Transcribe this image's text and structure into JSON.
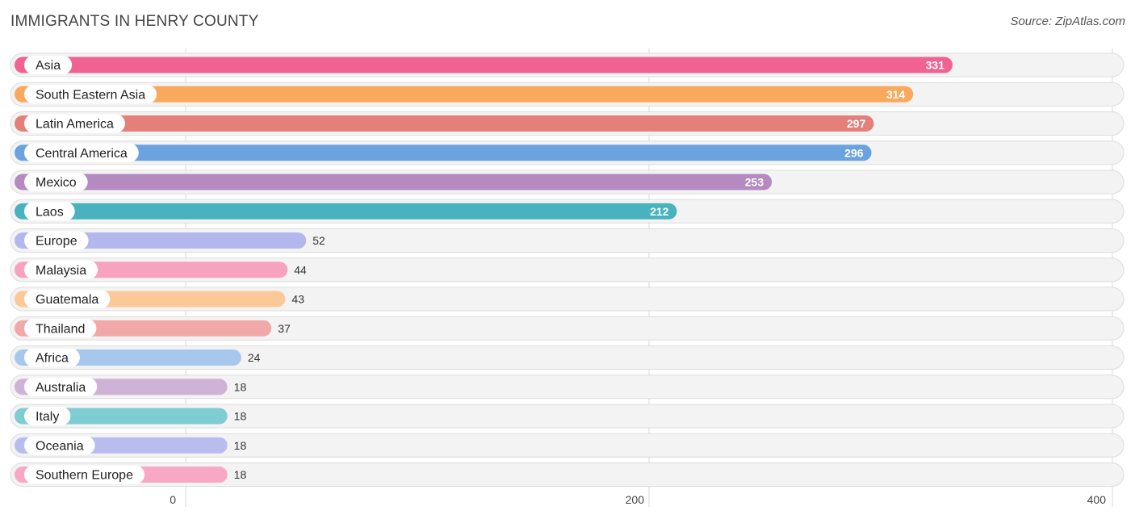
{
  "chart_data": {
    "type": "bar",
    "orientation": "horizontal",
    "title": "IMMIGRANTS IN HENRY COUNTY",
    "source": "Source: ZipAtlas.com",
    "xlim": [
      0,
      400
    ],
    "xticks": [
      0,
      200,
      400
    ],
    "categories": [
      "Asia",
      "South Eastern Asia",
      "Latin America",
      "Central America",
      "Mexico",
      "Laos",
      "Europe",
      "Malaysia",
      "Guatemala",
      "Thailand",
      "Africa",
      "Australia",
      "Italy",
      "Oceania",
      "Southern Europe"
    ],
    "values": [
      331,
      314,
      297,
      296,
      253,
      212,
      52,
      44,
      43,
      37,
      24,
      18,
      18,
      18,
      18
    ],
    "colors": [
      "#f06292",
      "#f9a95c",
      "#e57f7a",
      "#6aa3de",
      "#b48ac0",
      "#48b3bf",
      "#b2b8ee",
      "#f7a3bf",
      "#fbc997",
      "#f0a8a8",
      "#a8c7ec",
      "#cfb3d6",
      "#7dcdd3",
      "#b8bdee",
      "#f8a8c4"
    ]
  }
}
